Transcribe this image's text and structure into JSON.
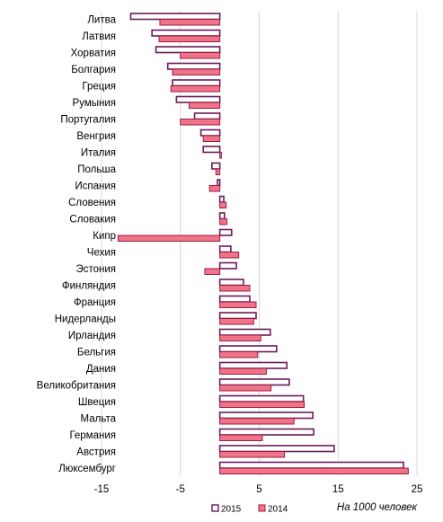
{
  "chart_data": {
    "type": "bar",
    "orientation": "horizontal",
    "categories": [
      "Литва",
      "Латвия",
      "Хорватия",
      "Болгария",
      "Греция",
      "Румыния",
      "Португалия",
      "Венгрия",
      "Италия",
      "Польша",
      "Испания",
      "Словения",
      "Словакия",
      "Кипр",
      "Чехия",
      "Эстония",
      "Финляндия",
      "Франция",
      "Нидерланды",
      "Ирландия",
      "Бельгия",
      "Дания",
      "Великобритания",
      "Швеция",
      "Мальта",
      "Германия",
      "Австрия",
      "Люксембург"
    ],
    "series": [
      {
        "name": "2015",
        "fill": "#ffffff",
        "stroke": "#6b1a5a",
        "values": [
          -11.3,
          -8.6,
          -8.1,
          -6.6,
          -6.0,
          -5.5,
          -3.2,
          -2.4,
          -2.1,
          -1.0,
          -0.3,
          0.5,
          0.6,
          1.5,
          1.4,
          2.1,
          3.0,
          3.8,
          4.6,
          6.4,
          7.2,
          8.5,
          8.8,
          10.6,
          11.8,
          11.9,
          14.5,
          23.3
        ]
      },
      {
        "name": "2014",
        "fill": "#f07487",
        "stroke": "#9c1b47",
        "values": [
          -7.6,
          -7.7,
          -5.0,
          -6.0,
          -6.2,
          -3.9,
          -5.0,
          -2.1,
          0.2,
          -0.5,
          -1.3,
          0.8,
          0.9,
          -12.9,
          2.4,
          -1.9,
          3.8,
          4.6,
          4.3,
          5.2,
          4.8,
          5.9,
          6.5,
          10.7,
          9.4,
          5.4,
          8.2,
          23.9
        ]
      }
    ],
    "xlim": [
      -15,
      25
    ],
    "xticks": [
      -15,
      -5,
      5,
      15,
      25
    ],
    "grid": true,
    "legend": "bottom",
    "annotation": "На 1000 человек"
  },
  "colors": {
    "bar_2015_border": "#6b1a5a",
    "bar_2014_fill": "#f07487",
    "grid": "#d9d9d9"
  }
}
